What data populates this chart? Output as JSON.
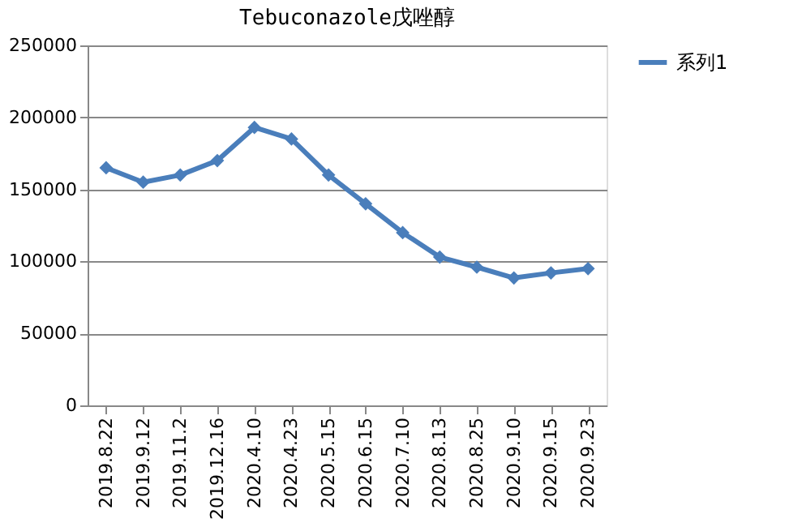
{
  "chart_data": {
    "type": "line",
    "title": "Tebuconazole戊唑醇",
    "categories": [
      "2019.8.22",
      "2019.9.12",
      "2019.11.2",
      "2019.12.16",
      "2020.4.10",
      "2020.4.23",
      "2020.5.15",
      "2020.6.15",
      "2020.7.10",
      "2020.8.13",
      "2020.8.25",
      "2020.9.10",
      "2020.9.15",
      "2020.9.23"
    ],
    "series": [
      {
        "name": "系列1",
        "color": "#4a7ebb",
        "values": [
          165000,
          155000,
          160000,
          170000,
          193000,
          185000,
          160000,
          140000,
          120000,
          103000,
          96000,
          88500,
          92000,
          95000
        ]
      }
    ],
    "ylim": [
      0,
      250000
    ],
    "yticks": [
      0,
      50000,
      100000,
      150000,
      200000,
      250000
    ],
    "grid": "y",
    "legend": "right",
    "marker": "diamond",
    "line_style": "solid"
  }
}
